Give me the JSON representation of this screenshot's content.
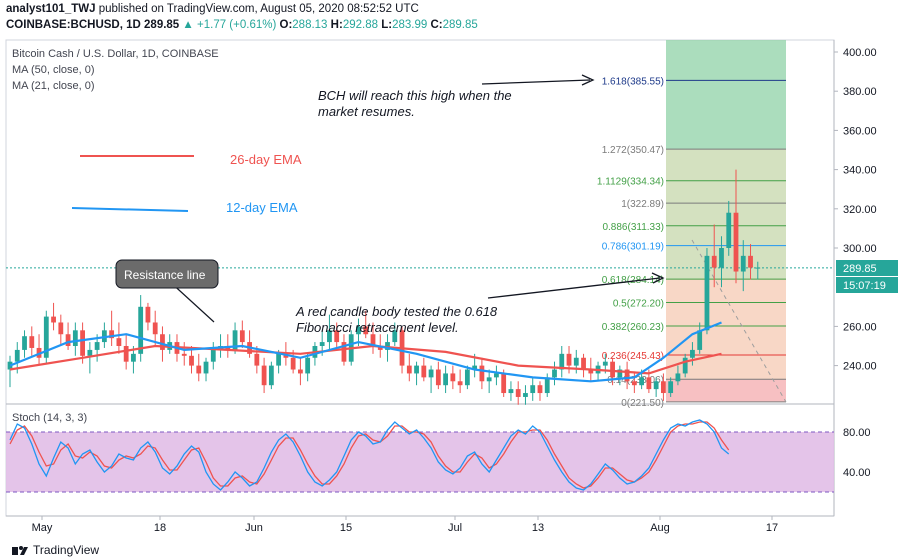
{
  "header": {
    "author": "analyst101_TWJ",
    "published_text": "published on TradingView.com, August 05, 2020 08:52:52 UTC",
    "symbol": "COINBASE:BCHUSD, 1D",
    "last": "289.85",
    "change": "+1.77 (+0.61%)",
    "o_label": "O:",
    "o": "288.13",
    "h_label": "H:",
    "h": "292.88",
    "l_label": "L:",
    "l": "283.99",
    "c_label": "C:",
    "c": "289.85"
  },
  "legend": {
    "title": "Bitcoin Cash / U.S. Dollar, 1D, COINBASE",
    "ma50": "MA (50, close, 0)",
    "ma21": "MA (21, close, 0)"
  },
  "colors": {
    "up": "#26a69a",
    "down": "#ef5350",
    "ema26": "#ef5350",
    "ema12": "#2196f3",
    "stoch_k": "#2196f3",
    "stoch_d": "#ef5350",
    "stoch_band": "#e1bee7"
  },
  "annotations": {
    "ema26_label": "26-day EMA",
    "ema12_label": "12-day EMA",
    "resistance_label": "Resistance line",
    "high_note_1": "BCH will reach this high when the",
    "high_note_2": "market resumes.",
    "red_note_1": "A red candle body tested the 0.618",
    "red_note_2": "Fibonacci retracement level."
  },
  "price_badge": {
    "price": "289.85",
    "timer": "15:07:19"
  },
  "stoch": {
    "label": "Stoch (14, 3, 3)",
    "upper": 80,
    "lower": 20,
    "ticks": [
      "80.00",
      "40.00"
    ]
  },
  "footer": {
    "brand": "TradingView"
  },
  "chart_data": {
    "type": "candlestick",
    "y_axis": {
      "ticks": [
        "400.00",
        "380.00",
        "360.00",
        "340.00",
        "320.00",
        "300.00",
        "260.00",
        "240.00"
      ],
      "ylim": [
        220,
        405
      ]
    },
    "x_axis": {
      "ticks": [
        "May",
        "18",
        "Jun",
        "15",
        "Jul",
        "13",
        "Aug",
        "17"
      ]
    },
    "fib_levels": [
      {
        "label": "1.618(385.55)",
        "value": 385.55
      },
      {
        "label": "1.272(350.47)",
        "value": 350.47
      },
      {
        "label": "1.1129(334.34)",
        "value": 334.34
      },
      {
        "label": "1(322.89)",
        "value": 322.89
      },
      {
        "label": "0.886(311.33)",
        "value": 311.33
      },
      {
        "label": "0.786(301.19)",
        "value": 301.19
      },
      {
        "label": "0.618(284.14)",
        "value": 284.14
      },
      {
        "label": "0.5(272.20)",
        "value": 272.2
      },
      {
        "label": "0.382(260.23)",
        "value": 260.23
      },
      {
        "label": "0.236(245.43)",
        "value": 245.43
      },
      {
        "label": "0.14(233.06)",
        "value": 233.06
      },
      {
        "label": "0(221.50)",
        "value": 221.5
      }
    ],
    "candles": [
      [
        238,
        245,
        229,
        242
      ],
      [
        242,
        252,
        236,
        248
      ],
      [
        248,
        258,
        244,
        255
      ],
      [
        255,
        260,
        245,
        249
      ],
      [
        249,
        256,
        240,
        244
      ],
      [
        244,
        268,
        241,
        265
      ],
      [
        265,
        272,
        258,
        262
      ],
      [
        262,
        266,
        250,
        256
      ],
      [
        256,
        262,
        248,
        250
      ],
      [
        250,
        262,
        245,
        258
      ],
      [
        258,
        262,
        241,
        245
      ],
      [
        245,
        252,
        236,
        248
      ],
      [
        248,
        256,
        242,
        252
      ],
      [
        252,
        262,
        249,
        258
      ],
      [
        258,
        268,
        250,
        254
      ],
      [
        254,
        262,
        246,
        250
      ],
      [
        250,
        256,
        238,
        242
      ],
      [
        242,
        250,
        236,
        246
      ],
      [
        246,
        276,
        242,
        270
      ],
      [
        270,
        272,
        258,
        262
      ],
      [
        262,
        268,
        250,
        256
      ],
      [
        256,
        260,
        242,
        248
      ],
      [
        248,
        256,
        246,
        252
      ],
      [
        252,
        256,
        242,
        246
      ],
      [
        246,
        252,
        240,
        245
      ],
      [
        245,
        250,
        236,
        240
      ],
      [
        240,
        246,
        232,
        236
      ],
      [
        236,
        244,
        232,
        242
      ],
      [
        242,
        252,
        238,
        248
      ],
      [
        248,
        256,
        244,
        250
      ],
      [
        250,
        256,
        244,
        248
      ],
      [
        248,
        262,
        246,
        258
      ],
      [
        258,
        263,
        249,
        252
      ],
      [
        252,
        258,
        244,
        246
      ],
      [
        246,
        250,
        236,
        240
      ],
      [
        240,
        244,
        226,
        230
      ],
      [
        230,
        242,
        228,
        240
      ],
      [
        240,
        248,
        236,
        246
      ],
      [
        246,
        252,
        240,
        244
      ],
      [
        244,
        248,
        236,
        238
      ],
      [
        238,
        244,
        230,
        236
      ],
      [
        236,
        246,
        232,
        244
      ],
      [
        244,
        252,
        240,
        250
      ],
      [
        250,
        258,
        245,
        252
      ],
      [
        252,
        266,
        248,
        258
      ],
      [
        258,
        262,
        248,
        252
      ],
      [
        252,
        256,
        240,
        242
      ],
      [
        242,
        258,
        240,
        256
      ],
      [
        256,
        264,
        250,
        260
      ],
      [
        260,
        268,
        254,
        256
      ],
      [
        256,
        262,
        246,
        250
      ],
      [
        250,
        256,
        244,
        248
      ],
      [
        248,
        256,
        242,
        252
      ],
      [
        252,
        262,
        250,
        258
      ],
      [
        258,
        260,
        236,
        240
      ],
      [
        240,
        246,
        232,
        236
      ],
      [
        236,
        242,
        230,
        240
      ],
      [
        240,
        244,
        232,
        234
      ],
      [
        234,
        240,
        226,
        238
      ],
      [
        238,
        242,
        228,
        230
      ],
      [
        230,
        240,
        226,
        236
      ],
      [
        236,
        240,
        228,
        232
      ],
      [
        232,
        238,
        226,
        230
      ],
      [
        230,
        240,
        228,
        238
      ],
      [
        238,
        246,
        234,
        240
      ],
      [
        240,
        244,
        228,
        232
      ],
      [
        232,
        238,
        226,
        234
      ],
      [
        234,
        240,
        230,
        236
      ],
      [
        236,
        238,
        224,
        226
      ],
      [
        226,
        232,
        222,
        228
      ],
      [
        228,
        232,
        220,
        224
      ],
      [
        224,
        230,
        220,
        226
      ],
      [
        226,
        234,
        222,
        230
      ],
      [
        230,
        232,
        222,
        226
      ],
      [
        226,
        236,
        224,
        234
      ],
      [
        234,
        242,
        230,
        238
      ],
      [
        238,
        250,
        234,
        246
      ],
      [
        246,
        250,
        236,
        240
      ],
      [
        240,
        248,
        236,
        244
      ],
      [
        244,
        246,
        234,
        238
      ],
      [
        238,
        244,
        232,
        236
      ],
      [
        236,
        242,
        232,
        240
      ],
      [
        240,
        246,
        236,
        242
      ],
      [
        242,
        244,
        230,
        234
      ],
      [
        234,
        240,
        230,
        238
      ],
      [
        238,
        242,
        228,
        232
      ],
      [
        232,
        236,
        226,
        230
      ],
      [
        230,
        238,
        228,
        234
      ],
      [
        234,
        238,
        226,
        228
      ],
      [
        228,
        234,
        224,
        232
      ],
      [
        232,
        236,
        222,
        226
      ],
      [
        226,
        234,
        224,
        232
      ],
      [
        232,
        240,
        230,
        236
      ],
      [
        236,
        246,
        234,
        244
      ],
      [
        244,
        252,
        240,
        248
      ],
      [
        248,
        262,
        246,
        258
      ],
      [
        258,
        300,
        256,
        296
      ],
      [
        296,
        312,
        280,
        290
      ],
      [
        290,
        306,
        280,
        300
      ],
      [
        300,
        324,
        296,
        318
      ],
      [
        318,
        340,
        282,
        288
      ],
      [
        288,
        304,
        278,
        296
      ],
      [
        296,
        302,
        284,
        290
      ],
      [
        290,
        293,
        284,
        290
      ]
    ],
    "ema26": [
      [
        0,
        238
      ],
      [
        10,
        244
      ],
      [
        20,
        250
      ],
      [
        30,
        248
      ],
      [
        40,
        246
      ],
      [
        50,
        250
      ],
      [
        60,
        247
      ],
      [
        70,
        240
      ],
      [
        80,
        238
      ],
      [
        88,
        236
      ],
      [
        93,
        242
      ],
      [
        98,
        246
      ]
    ],
    "ema12": [
      [
        0,
        240
      ],
      [
        8,
        252
      ],
      [
        16,
        256
      ],
      [
        24,
        248
      ],
      [
        32,
        250
      ],
      [
        40,
        244
      ],
      [
        48,
        252
      ],
      [
        56,
        246
      ],
      [
        64,
        238
      ],
      [
        72,
        234
      ],
      [
        80,
        232
      ],
      [
        86,
        234
      ],
      [
        90,
        244
      ],
      [
        94,
        256
      ],
      [
        98,
        262
      ]
    ],
    "stoch_k": [
      72,
      88,
      84,
      68,
      48,
      36,
      54,
      70,
      64,
      48,
      58,
      62,
      50,
      40,
      46,
      58,
      54,
      52,
      64,
      70,
      60,
      44,
      38,
      46,
      58,
      66,
      60,
      40,
      28,
      22,
      30,
      40,
      34,
      26,
      30,
      44,
      60,
      72,
      78,
      70,
      56,
      40,
      30,
      26,
      32,
      40,
      56,
      72,
      80,
      76,
      68,
      70,
      82,
      90,
      84,
      78,
      82,
      74,
      64,
      50,
      42,
      38,
      44,
      56,
      60,
      48,
      40,
      52,
      64,
      76,
      82,
      78,
      86,
      80,
      66,
      52,
      40,
      30,
      24,
      22,
      28,
      38,
      48,
      42,
      34,
      28,
      30,
      36,
      44,
      58,
      72,
      84,
      88,
      86,
      90,
      92,
      88,
      80,
      64,
      58
    ],
    "stoch_d": [
      68,
      82,
      86,
      76,
      60,
      46,
      48,
      62,
      68,
      56,
      54,
      60,
      56,
      46,
      44,
      52,
      56,
      54,
      58,
      66,
      64,
      52,
      42,
      42,
      52,
      62,
      64,
      50,
      34,
      26,
      26,
      34,
      36,
      30,
      28,
      38,
      52,
      66,
      74,
      74,
      62,
      48,
      36,
      28,
      28,
      36,
      48,
      64,
      76,
      78,
      72,
      70,
      76,
      86,
      86,
      80,
      80,
      78,
      70,
      56,
      46,
      40,
      40,
      50,
      58,
      54,
      44,
      48,
      58,
      70,
      80,
      80,
      82,
      82,
      72,
      58,
      46,
      34,
      28,
      24,
      26,
      34,
      44,
      44,
      38,
      32,
      30,
      34,
      40,
      52,
      66,
      80,
      86,
      88,
      88,
      90,
      90,
      84,
      72,
      62
    ]
  }
}
